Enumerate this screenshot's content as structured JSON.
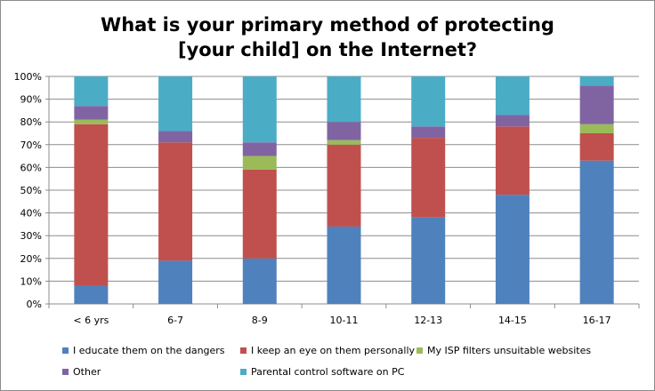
{
  "chart_data": {
    "type": "bar",
    "stacked": true,
    "title_lines": [
      "What is your primary method of protecting",
      "[your child] on the Internet?"
    ],
    "categories": [
      "< 6 yrs",
      "6-7",
      "8-9",
      "10-11",
      "12-13",
      "14-15",
      "16-17"
    ],
    "y_ticks": [
      "0%",
      "10%",
      "20%",
      "30%",
      "40%",
      "50%",
      "60%",
      "70%",
      "80%",
      "90%",
      "100%"
    ],
    "ylim": [
      0,
      100
    ],
    "grid": true,
    "legend_position": "bottom",
    "series": [
      {
        "name": "I educate them on the dangers",
        "color": "#4f81bd",
        "values": [
          8,
          19,
          20,
          34,
          38,
          48,
          63
        ]
      },
      {
        "name": "I keep an eye on them personally",
        "color": "#c0504d",
        "values": [
          71,
          52,
          39,
          36,
          35,
          30,
          12
        ]
      },
      {
        "name": "My ISP filters unsuitable websites",
        "color": "#9bbb59",
        "values": [
          2,
          0,
          6,
          2,
          0,
          0,
          4
        ]
      },
      {
        "name": "Other",
        "color": "#8064a2",
        "values": [
          6,
          5,
          6,
          8,
          5,
          5,
          17
        ]
      },
      {
        "name": "Parental control software on PC",
        "color": "#4bacc6",
        "values": [
          13,
          24,
          29,
          20,
          22,
          17,
          4
        ]
      }
    ]
  }
}
